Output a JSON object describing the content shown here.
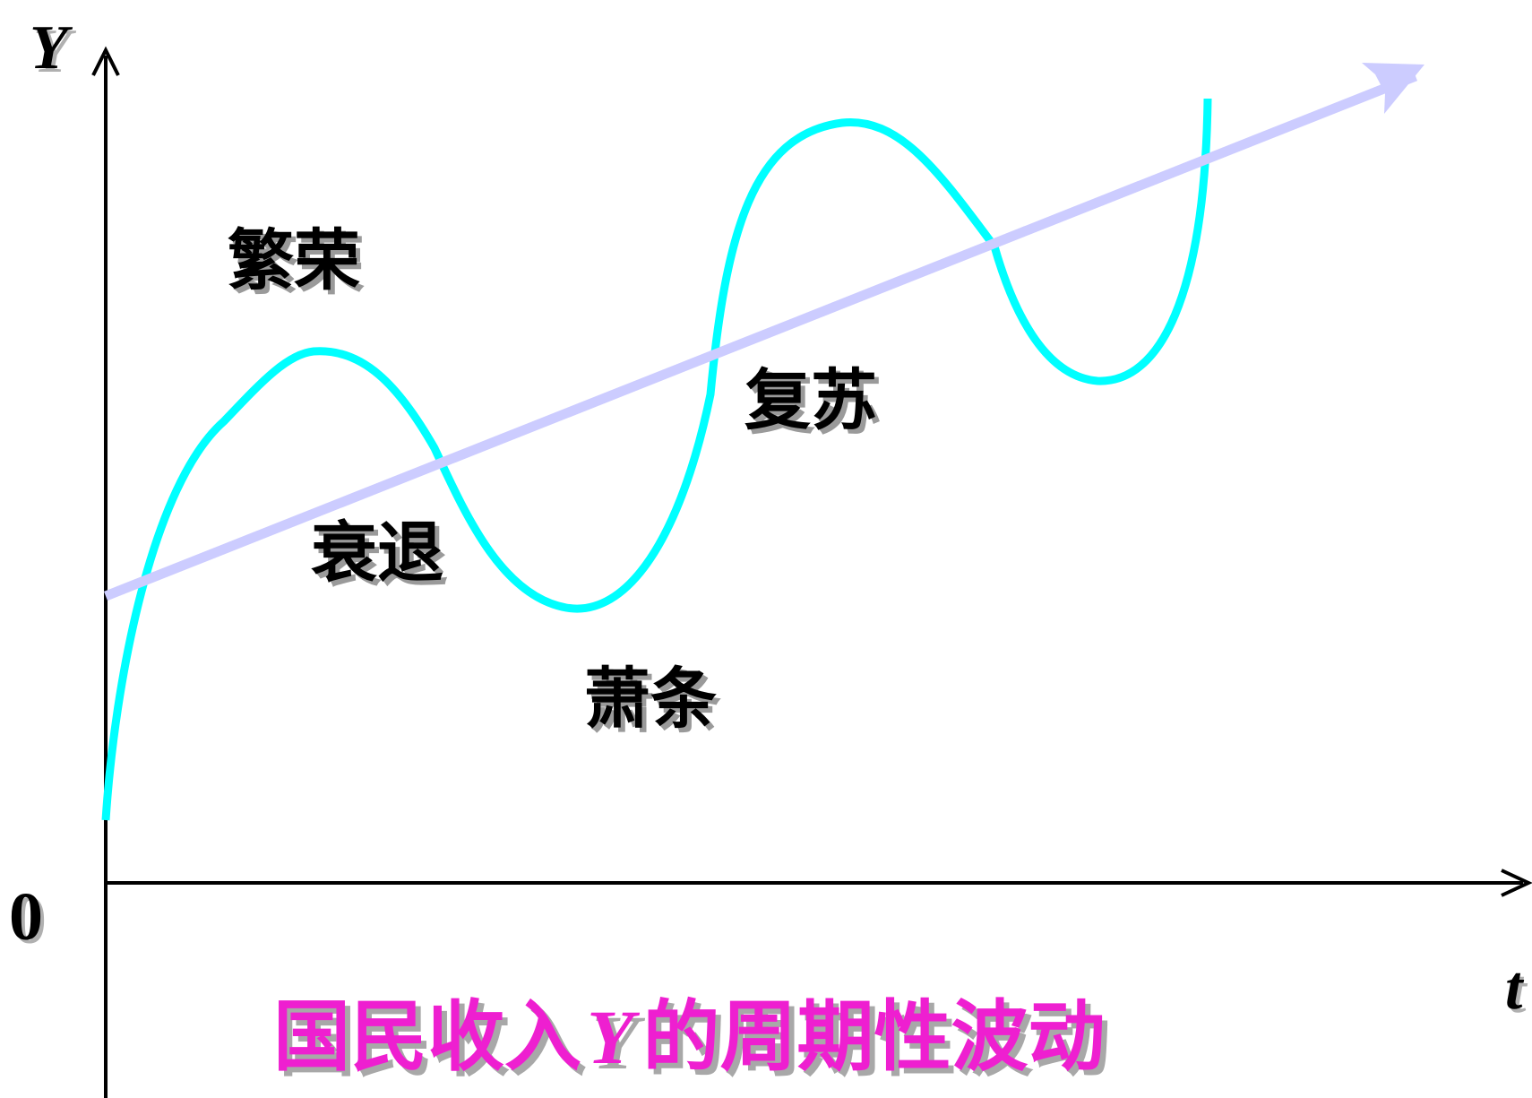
{
  "axes": {
    "y_label": "Y",
    "x_label": "t",
    "origin_label": "0"
  },
  "phases": {
    "boom": "繁荣",
    "recession": "衰退",
    "depression": "萧条",
    "recovery": "复苏"
  },
  "title": {
    "prefix": "国民收入",
    "variable": "Y",
    "suffix": "的周期性波动",
    "color": "#ee1fd0",
    "shadow_color": "#a8a8a8"
  },
  "colors": {
    "wave": "#00ffff",
    "trend": "#ccccff",
    "axes": "#000000"
  }
}
